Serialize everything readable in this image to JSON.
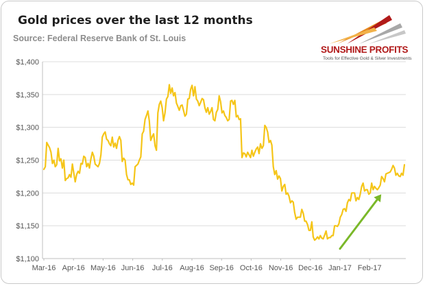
{
  "title": "Gold prices over the last 12 months",
  "subtitle": "Source: Federal Reserve Bank of St. Louis",
  "logo": {
    "name": "SUNSHINE PROFITS",
    "tagline": "Tools for Effective Gold & Silver Investments"
  },
  "colors": {
    "line": "#f5c518",
    "arrow": "#7ab829",
    "grid": "#dcdcdc",
    "axis": "#bfbfbf",
    "logo_red": "#b11a1a",
    "logo_orange": "#e58a1f",
    "logo_gray": "#a8a8a8"
  },
  "chart_data": {
    "type": "line",
    "title": "Gold prices over the last 12 months",
    "xlabel": "",
    "ylabel": "",
    "ylim": [
      1100,
      1400
    ],
    "yticks": [
      1100,
      1150,
      1200,
      1250,
      1300,
      1350,
      1400
    ],
    "ytick_labels": [
      "$1,100",
      "$1,150",
      "$1,200",
      "$1,250",
      "$1,300",
      "$1,350",
      "$1,400"
    ],
    "xticks": [
      "Mar-16",
      "Apr-16",
      "May-16",
      "Jun-16",
      "Jul-16",
      "Aug-16",
      "Sep-16",
      "Oct-16",
      "Nov-16",
      "Dec-16",
      "Jan-17",
      "Feb-17"
    ],
    "grid": "horizontal",
    "legend": "none",
    "series": [
      {
        "values": [
          1236,
          1240,
          1277,
          1273,
          1269,
          1262,
          1245,
          1250,
          1240,
          1243,
          1268,
          1249,
          1252,
          1238,
          1250,
          1219,
          1222,
          1223,
          1228,
          1224,
          1244,
          1230,
          1217,
          1228,
          1233,
          1230,
          1245,
          1244,
          1256,
          1254,
          1240,
          1245,
          1238,
          1252,
          1262,
          1256,
          1244,
          1242,
          1240,
          1245,
          1258,
          1285,
          1290,
          1293,
          1282,
          1280,
          1275,
          1272,
          1285,
          1270,
          1276,
          1268,
          1280,
          1286,
          1280,
          1248,
          1253,
          1250,
          1228,
          1220,
          1220,
          1213,
          1215,
          1212,
          1240,
          1242,
          1244,
          1250,
          1255,
          1290,
          1294,
          1312,
          1318,
          1325,
          1310,
          1280,
          1286,
          1290,
          1272,
          1265,
          1322,
          1335,
          1340,
          1330,
          1310,
          1322,
          1343,
          1347,
          1365,
          1352,
          1360,
          1348,
          1353,
          1337,
          1332,
          1326,
          1333,
          1334,
          1326,
          1317,
          1320,
          1343,
          1344,
          1358,
          1364,
          1348,
          1362,
          1343,
          1340,
          1333,
          1338,
          1344,
          1342,
          1330,
          1323,
          1330,
          1320,
          1324,
          1330,
          1312,
          1310,
          1323,
          1327,
          1348,
          1339,
          1322,
          1325,
          1318,
          1315,
          1310,
          1312,
          1340,
          1341,
          1335,
          1341,
          1316,
          1318,
          1312,
          1313,
          1254,
          1261,
          1260,
          1255,
          1262,
          1258,
          1254,
          1265,
          1256,
          1262,
          1267,
          1270,
          1260,
          1275,
          1268,
          1272,
          1303,
          1300,
          1293,
          1277,
          1280,
          1273,
          1240,
          1228,
          1234,
          1221,
          1226,
          1222,
          1203,
          1210,
          1213,
          1198,
          1200,
          1195,
          1185,
          1188,
          1186,
          1170,
          1160,
          1163,
          1163,
          1163,
          1175,
          1169,
          1157,
          1157,
          1152,
          1143,
          1143,
          1156,
          1133,
          1128,
          1130,
          1133,
          1130,
          1135,
          1131,
          1130,
          1136,
          1142,
          1130,
          1132,
          1132,
          1135,
          1135,
          1150,
          1150,
          1149,
          1153,
          1163,
          1167,
          1175,
          1176,
          1172,
          1185,
          1190,
          1188,
          1200,
          1200,
          1200,
          1188,
          1193,
          1190,
          1198,
          1210,
          1215,
          1203,
          1205,
          1205,
          1198,
          1200,
          1215,
          1205,
          1210,
          1207,
          1205,
          1208,
          1212,
          1225,
          1222,
          1217,
          1229,
          1230,
          1231,
          1232,
          1236,
          1242,
          1238,
          1227,
          1230,
          1226,
          1225,
          1230,
          1227,
          1243
        ]
      }
    ],
    "annotations": [
      {
        "type": "arrow",
        "from": {
          "x": "Jan-17",
          "y": 1115
        },
        "to": {
          "x": "Feb-17",
          "y": 1198
        }
      }
    ]
  }
}
